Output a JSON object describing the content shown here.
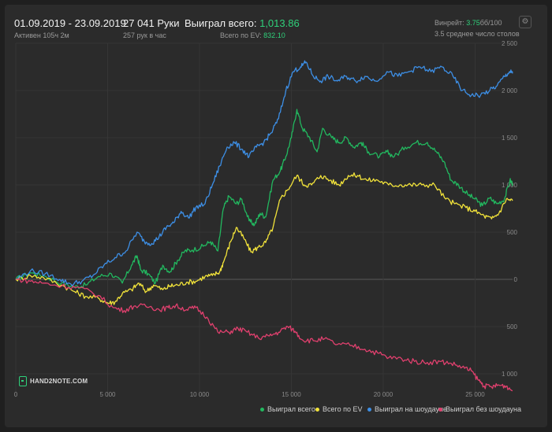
{
  "header": {
    "date_range": "01.09.2019 - 23.09.2019",
    "active_time": "Активен 105ч 2м",
    "hands": "27 041 Руки",
    "hands_per_hour": "257 рук в час",
    "won_total_label": "Выиграл всего:",
    "won_total_value": "1,013.86",
    "ev_total_label": "Всего по EV:",
    "ev_total_value": "832.10",
    "winrate_label": "Винрейт:",
    "winrate_value": "3.75",
    "winrate_unit": "бб/100",
    "tables": "3.5 среднее число столов",
    "settings_icon": "gear-icon"
  },
  "logo": {
    "text": "HAND2NOTE.COM"
  },
  "colors": {
    "won_total": "#22b85f",
    "ev": "#f2e33a",
    "showdown": "#3d8fe6",
    "non_showdown": "#e0406e",
    "accent": "#2fd07a"
  },
  "chart_data": {
    "type": "line",
    "xlim": [
      0,
      27041
    ],
    "ylim": [
      -1250,
      2500
    ],
    "x_ticks": [
      0,
      5000,
      10000,
      15000,
      20000,
      25000
    ],
    "x_tick_labels": [
      "0",
      "5 000",
      "10 000",
      "15 000",
      "20 000",
      "25 000"
    ],
    "y_ticks": [
      2500,
      2000,
      1500,
      1000,
      500,
      0,
      -500,
      -1000
    ],
    "y_tick_labels": [
      "2 500",
      "2 000",
      "1 500",
      "1 000",
      "500",
      "0",
      "500",
      "1 000"
    ],
    "grid": true,
    "legend_position": "bottom-right",
    "series": [
      {
        "name": "Выиграл всего",
        "color": "#22b85f",
        "points": [
          [
            0,
            0
          ],
          [
            800,
            70
          ],
          [
            1500,
            40
          ],
          [
            2500,
            -40
          ],
          [
            3200,
            -80
          ],
          [
            3800,
            -60
          ],
          [
            4500,
            30
          ],
          [
            5200,
            60
          ],
          [
            5800,
            -40
          ],
          [
            6300,
            150
          ],
          [
            6600,
            250
          ],
          [
            6800,
            100
          ],
          [
            7200,
            60
          ],
          [
            7600,
            -40
          ],
          [
            8000,
            150
          ],
          [
            8400,
            80
          ],
          [
            8800,
            200
          ],
          [
            9200,
            300
          ],
          [
            9600,
            310
          ],
          [
            10200,
            350
          ],
          [
            10600,
            400
          ],
          [
            11000,
            300
          ],
          [
            11300,
            750
          ],
          [
            11600,
            880
          ],
          [
            12000,
            800
          ],
          [
            12300,
            850
          ],
          [
            12700,
            620
          ],
          [
            13000,
            580
          ],
          [
            13300,
            700
          ],
          [
            13600,
            660
          ],
          [
            14000,
            1050
          ],
          [
            14400,
            1150
          ],
          [
            14700,
            1300
          ],
          [
            15000,
            1500
          ],
          [
            15300,
            1800
          ],
          [
            15600,
            1600
          ],
          [
            16000,
            1500
          ],
          [
            16400,
            1350
          ],
          [
            16700,
            1600
          ],
          [
            17200,
            1500
          ],
          [
            17600,
            1450
          ],
          [
            18000,
            1500
          ],
          [
            18400,
            1400
          ],
          [
            18800,
            1450
          ],
          [
            19200,
            1350
          ],
          [
            19800,
            1300
          ],
          [
            20200,
            1350
          ],
          [
            20600,
            1300
          ],
          [
            21200,
            1400
          ],
          [
            21800,
            1450
          ],
          [
            22400,
            1450
          ],
          [
            22900,
            1350
          ],
          [
            23300,
            1250
          ],
          [
            23700,
            1050
          ],
          [
            24100,
            1000
          ],
          [
            24600,
            900
          ],
          [
            25000,
            850
          ],
          [
            25400,
            780
          ],
          [
            25800,
            860
          ],
          [
            26200,
            800
          ],
          [
            26600,
            850
          ],
          [
            26900,
            1050
          ],
          [
            27041,
            1013.86
          ]
        ]
      },
      {
        "name": "Всего по EV",
        "color": "#f2e33a",
        "points": [
          [
            0,
            0
          ],
          [
            800,
            40
          ],
          [
            1500,
            20
          ],
          [
            2500,
            -60
          ],
          [
            3200,
            -130
          ],
          [
            3800,
            -180
          ],
          [
            4500,
            -200
          ],
          [
            5000,
            -250
          ],
          [
            5400,
            -240
          ],
          [
            5800,
            -150
          ],
          [
            6300,
            -110
          ],
          [
            6700,
            -40
          ],
          [
            7100,
            -130
          ],
          [
            7500,
            -60
          ],
          [
            8000,
            -110
          ],
          [
            8400,
            -70
          ],
          [
            8800,
            -60
          ],
          [
            9300,
            -30
          ],
          [
            9800,
            -20
          ],
          [
            10300,
            30
          ],
          [
            10700,
            40
          ],
          [
            11100,
            80
          ],
          [
            11300,
            180
          ],
          [
            11700,
            400
          ],
          [
            12000,
            550
          ],
          [
            12400,
            440
          ],
          [
            12800,
            290
          ],
          [
            13200,
            340
          ],
          [
            13600,
            390
          ],
          [
            14000,
            550
          ],
          [
            14400,
            850
          ],
          [
            14800,
            950
          ],
          [
            15300,
            1100
          ],
          [
            15700,
            1000
          ],
          [
            16100,
            1000
          ],
          [
            16600,
            1100
          ],
          [
            17100,
            1050
          ],
          [
            17600,
            1000
          ],
          [
            18100,
            1100
          ],
          [
            18600,
            1100
          ],
          [
            19100,
            1050
          ],
          [
            19700,
            1050
          ],
          [
            20300,
            1000
          ],
          [
            20900,
            1000
          ],
          [
            21500,
            1000
          ],
          [
            22100,
            1000
          ],
          [
            22800,
            1000
          ],
          [
            23400,
            850
          ],
          [
            23900,
            800
          ],
          [
            24500,
            760
          ],
          [
            25000,
            720
          ],
          [
            25500,
            670
          ],
          [
            25900,
            640
          ],
          [
            26300,
            700
          ],
          [
            26700,
            850
          ],
          [
            27041,
            832.1
          ]
        ]
      },
      {
        "name": "Выиграл на шоудауне",
        "color": "#3d8fe6",
        "points": [
          [
            0,
            0
          ],
          [
            800,
            90
          ],
          [
            1600,
            60
          ],
          [
            2400,
            0
          ],
          [
            3000,
            -50
          ],
          [
            3600,
            -20
          ],
          [
            4200,
            40
          ],
          [
            4800,
            150
          ],
          [
            5400,
            230
          ],
          [
            6000,
            300
          ],
          [
            6600,
            500
          ],
          [
            7000,
            400
          ],
          [
            7400,
            380
          ],
          [
            7800,
            450
          ],
          [
            8200,
            550
          ],
          [
            8600,
            600
          ],
          [
            9000,
            720
          ],
          [
            9400,
            650
          ],
          [
            9800,
            760
          ],
          [
            10300,
            800
          ],
          [
            10700,
            1000
          ],
          [
            11100,
            1200
          ],
          [
            11500,
            1400
          ],
          [
            11900,
            1450
          ],
          [
            12300,
            1380
          ],
          [
            12700,
            1300
          ],
          [
            13100,
            1400
          ],
          [
            13500,
            1450
          ],
          [
            13900,
            1550
          ],
          [
            14300,
            1700
          ],
          [
            14700,
            2000
          ],
          [
            15100,
            2200
          ],
          [
            15500,
            2250
          ],
          [
            15800,
            2300
          ],
          [
            16200,
            2150
          ],
          [
            16600,
            2100
          ],
          [
            17000,
            2150
          ],
          [
            17500,
            2100
          ],
          [
            18000,
            2150
          ],
          [
            18500,
            2100
          ],
          [
            19000,
            2150
          ],
          [
            19600,
            2100
          ],
          [
            20200,
            2200
          ],
          [
            20800,
            2150
          ],
          [
            21400,
            2200
          ],
          [
            22000,
            2250
          ],
          [
            22600,
            2200
          ],
          [
            23200,
            2250
          ],
          [
            23800,
            2150
          ],
          [
            24300,
            2000
          ],
          [
            24800,
            1950
          ],
          [
            25300,
            1950
          ],
          [
            25800,
            2000
          ],
          [
            26200,
            2050
          ],
          [
            26600,
            2150
          ],
          [
            26900,
            2200
          ],
          [
            27041,
            2180
          ]
        ]
      },
      {
        "name": "Выиграл без шоудауна",
        "color": "#e0406e",
        "points": [
          [
            0,
            0
          ],
          [
            800,
            -20
          ],
          [
            1500,
            -40
          ],
          [
            2500,
            -70
          ],
          [
            3500,
            -90
          ],
          [
            4500,
            -170
          ],
          [
            5300,
            -300
          ],
          [
            5900,
            -330
          ],
          [
            6500,
            -280
          ],
          [
            7300,
            -290
          ],
          [
            7800,
            -320
          ],
          [
            8300,
            -300
          ],
          [
            8700,
            -280
          ],
          [
            9300,
            -320
          ],
          [
            9800,
            -300
          ],
          [
            10400,
            -400
          ],
          [
            11000,
            -560
          ],
          [
            11600,
            -560
          ],
          [
            12100,
            -520
          ],
          [
            12600,
            -560
          ],
          [
            13200,
            -620
          ],
          [
            13800,
            -600
          ],
          [
            14300,
            -560
          ],
          [
            14800,
            -500
          ],
          [
            15200,
            -550
          ],
          [
            15600,
            -640
          ],
          [
            16200,
            -650
          ],
          [
            16800,
            -630
          ],
          [
            17500,
            -690
          ],
          [
            18300,
            -700
          ],
          [
            19000,
            -740
          ],
          [
            19700,
            -780
          ],
          [
            20300,
            -830
          ],
          [
            21000,
            -840
          ],
          [
            21700,
            -870
          ],
          [
            22400,
            -880
          ],
          [
            23100,
            -870
          ],
          [
            23700,
            -890
          ],
          [
            24300,
            -930
          ],
          [
            24800,
            -970
          ],
          [
            25200,
            -1070
          ],
          [
            25500,
            -1130
          ],
          [
            25900,
            -1140
          ],
          [
            26300,
            -1120
          ],
          [
            26700,
            -1130
          ],
          [
            27041,
            -1180
          ]
        ]
      }
    ]
  }
}
